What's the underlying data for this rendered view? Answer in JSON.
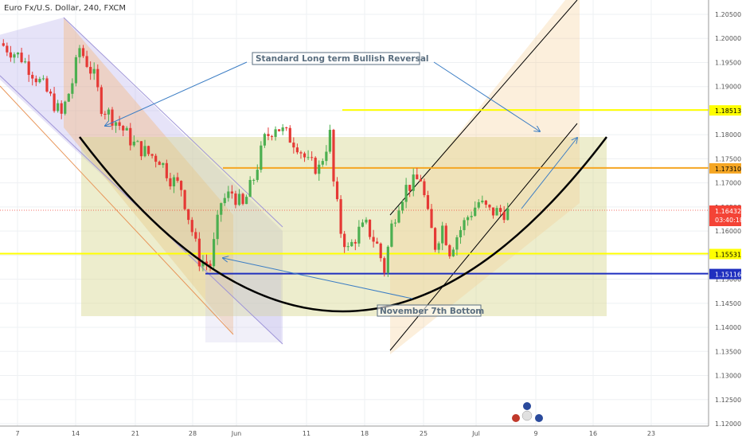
{
  "header": {
    "title": "Euro Fx/U.S. Dollar, 240, FXCM"
  },
  "chart_data": {
    "type": "candlestick",
    "title": "Euro Fx/U.S. Dollar, 240, FXCM",
    "ylim": [
      1.1175,
      1.2075
    ],
    "y_ticks": [
      "1.20500",
      "1.20000",
      "1.19500",
      "1.19000",
      "1.18500",
      "1.18000",
      "1.17500",
      "1.17000",
      "1.16500",
      "1.16000",
      "1.15500",
      "1.15000",
      "1.14500",
      "1.14000",
      "1.13500",
      "1.13000",
      "1.12500",
      "1.12000"
    ],
    "x_ticks": [
      "7",
      "14",
      "21",
      "28",
      "Jun",
      "11",
      "18",
      "25",
      "Jul",
      "9",
      "16",
      "23"
    ],
    "grid": true,
    "price_path": [
      [
        0,
        1.199
      ],
      [
        6,
        1.196
      ],
      [
        12,
        1.19
      ],
      [
        17,
        1.184
      ],
      [
        20,
        1.191
      ],
      [
        22,
        1.198
      ],
      [
        26,
        1.192
      ],
      [
        28,
        1.186
      ],
      [
        33,
        1.182
      ],
      [
        37,
        1.178
      ],
      [
        41,
        1.176
      ],
      [
        44,
        1.175
      ],
      [
        47,
        1.171
      ],
      [
        50,
        1.169
      ],
      [
        53,
        1.16
      ],
      [
        55,
        1.154
      ],
      [
        58,
        1.153
      ],
      [
        61,
        1.166
      ],
      [
        64,
        1.168
      ],
      [
        67,
        1.165
      ],
      [
        70,
        1.171
      ],
      [
        73,
        1.179
      ],
      [
        76,
        1.182
      ],
      [
        79,
        1.18
      ],
      [
        82,
        1.178
      ],
      [
        85,
        1.174
      ],
      [
        88,
        1.173
      ],
      [
        91,
        1.18
      ],
      [
        92,
        1.17
      ],
      [
        94,
        1.16
      ],
      [
        96,
        1.156
      ],
      [
        99,
        1.16
      ],
      [
        101,
        1.161
      ],
      [
        104,
        1.157
      ],
      [
        106,
        1.152
      ],
      [
        108,
        1.161
      ],
      [
        110,
        1.166
      ],
      [
        112,
        1.169
      ],
      [
        116,
        1.171
      ],
      [
        118,
        1.163
      ],
      [
        120,
        1.157
      ],
      [
        122,
        1.161
      ],
      [
        124,
        1.156
      ],
      [
        126,
        1.159
      ],
      [
        129,
        1.163
      ],
      [
        132,
        1.166
      ],
      [
        135,
        1.164
      ],
      [
        139,
        1.164
      ]
    ],
    "levels": [
      {
        "value": 1.18513,
        "label": "1.18513",
        "color": "#ffff00"
      },
      {
        "value": 1.1731,
        "label": "1.17310",
        "color": "#f5a623"
      },
      {
        "value": 1.16432,
        "label": "1.16432",
        "color": "#f44336"
      },
      {
        "value": 1.15531,
        "label": "1.15531",
        "color": "#ffff00"
      },
      {
        "value": 1.15116,
        "label": "1.15116",
        "color": "#1f2fbf"
      }
    ],
    "countdown_label": "03:40:18",
    "annotations": [
      "Standard Long term Bullish Reversal",
      "November 7th Bottom"
    ],
    "colors": {
      "up": "#4caf50",
      "down": "#e53935"
    }
  }
}
